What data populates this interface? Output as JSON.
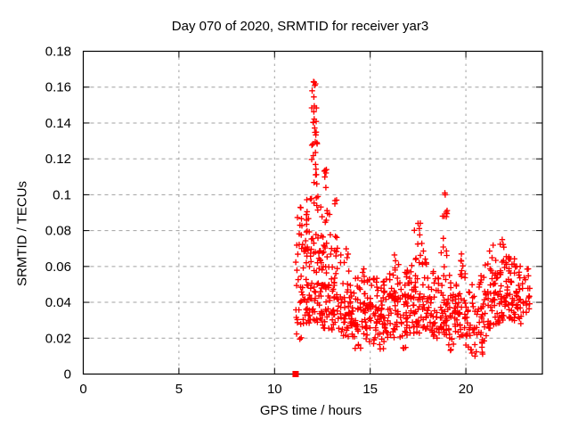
{
  "chart_data": {
    "type": "scatter",
    "title": "Day 070 of 2020, SRMTID for receiver yar3",
    "xlabel": "GPS time / hours",
    "ylabel": "SRMTID / TECUs",
    "xlim": [
      0,
      24
    ],
    "ylim": [
      0,
      0.18
    ],
    "xtick_values": [
      0,
      5,
      10,
      15,
      20
    ],
    "xtick_labels": [
      "0",
      "5",
      "10",
      "15",
      "20"
    ],
    "ytick_values": [
      0,
      0.02,
      0.04,
      0.06,
      0.08,
      0.1,
      0.12,
      0.14,
      0.16,
      0.18
    ],
    "ytick_labels": [
      "0",
      "0.02",
      "0.04",
      "0.06",
      "0.08",
      "0.1",
      "0.12",
      "0.14",
      "0.16",
      "0.18"
    ],
    "grid": {
      "show": true,
      "color": "#a0a0a0",
      "style": "dashed"
    },
    "axis_color": "#000000",
    "legend": "none",
    "series": [
      {
        "name": "srmtid",
        "marker": "plus",
        "color": "#ff0000",
        "x_extent_hours": [
          11.1,
          23.35
        ],
        "notable_points": [
          [
            12.04,
            0.163
          ],
          [
            12.68,
            0.104
          ],
          [
            12.71,
            0.114
          ],
          [
            13.24,
            0.097
          ],
          [
            11.35,
            0.093
          ],
          [
            17.5,
            0.084
          ],
          [
            18.9,
            0.101
          ],
          [
            19.77,
            0.067
          ],
          [
            21.9,
            0.075
          ]
        ],
        "density_bins": [
          [
            11.1,
            11.5,
            0.03,
            0.05,
            12
          ],
          [
            11.1,
            11.5,
            0.05,
            0.075,
            10
          ],
          [
            11.15,
            11.45,
            0.075,
            0.095,
            7
          ],
          [
            11.15,
            11.4,
            0.019,
            0.03,
            5
          ],
          [
            11.5,
            12.0,
            0.028,
            0.05,
            26
          ],
          [
            11.5,
            12.0,
            0.05,
            0.08,
            22
          ],
          [
            11.55,
            12.0,
            0.08,
            0.098,
            9
          ],
          [
            11.95,
            12.15,
            0.152,
            0.164,
            5
          ],
          [
            11.9,
            12.2,
            0.132,
            0.152,
            12
          ],
          [
            11.9,
            12.25,
            0.112,
            0.132,
            10
          ],
          [
            11.95,
            12.3,
            0.095,
            0.112,
            7
          ],
          [
            12.6,
            12.8,
            0.098,
            0.115,
            4
          ],
          [
            12.0,
            12.5,
            0.028,
            0.05,
            26
          ],
          [
            12.0,
            12.5,
            0.05,
            0.08,
            20
          ],
          [
            12.1,
            13.0,
            0.082,
            0.094,
            9
          ],
          [
            12.5,
            13.0,
            0.025,
            0.05,
            24
          ],
          [
            12.5,
            13.0,
            0.05,
            0.078,
            16
          ],
          [
            13.1,
            13.3,
            0.09,
            0.098,
            2
          ],
          [
            13.0,
            13.5,
            0.022,
            0.045,
            24
          ],
          [
            13.0,
            13.5,
            0.045,
            0.07,
            14
          ],
          [
            13.05,
            13.4,
            0.07,
            0.082,
            3
          ],
          [
            13.5,
            14.0,
            0.02,
            0.042,
            26
          ],
          [
            13.5,
            14.0,
            0.042,
            0.065,
            11
          ],
          [
            13.6,
            13.9,
            0.065,
            0.075,
            2
          ],
          [
            14.0,
            14.5,
            0.018,
            0.04,
            26
          ],
          [
            14.0,
            14.5,
            0.04,
            0.058,
            9
          ],
          [
            14.2,
            14.5,
            0.013,
            0.018,
            4
          ],
          [
            14.5,
            15.0,
            0.018,
            0.04,
            24
          ],
          [
            14.5,
            15.0,
            0.04,
            0.056,
            9
          ],
          [
            14.6,
            14.9,
            0.056,
            0.062,
            2
          ],
          [
            15.0,
            15.5,
            0.016,
            0.04,
            26
          ],
          [
            15.0,
            15.5,
            0.04,
            0.056,
            10
          ],
          [
            15.4,
            15.8,
            0.012,
            0.017,
            3
          ],
          [
            15.5,
            16.0,
            0.018,
            0.042,
            26
          ],
          [
            15.5,
            16.0,
            0.042,
            0.058,
            10
          ],
          [
            16.0,
            16.5,
            0.02,
            0.045,
            28
          ],
          [
            16.0,
            16.5,
            0.045,
            0.06,
            10
          ],
          [
            16.2,
            16.5,
            0.06,
            0.067,
            3
          ],
          [
            16.5,
            17.0,
            0.02,
            0.045,
            26
          ],
          [
            16.5,
            17.0,
            0.045,
            0.058,
            9
          ],
          [
            16.6,
            16.9,
            0.013,
            0.019,
            3
          ],
          [
            17.0,
            17.5,
            0.022,
            0.048,
            26
          ],
          [
            17.0,
            17.5,
            0.048,
            0.062,
            10
          ],
          [
            17.3,
            17.8,
            0.063,
            0.085,
            10
          ],
          [
            17.5,
            18.0,
            0.022,
            0.048,
            26
          ],
          [
            17.5,
            18.0,
            0.048,
            0.065,
            9
          ],
          [
            18.0,
            18.5,
            0.02,
            0.045,
            26
          ],
          [
            18.0,
            18.5,
            0.045,
            0.058,
            8
          ],
          [
            18.5,
            19.0,
            0.02,
            0.045,
            26
          ],
          [
            18.5,
            19.0,
            0.045,
            0.06,
            9
          ],
          [
            18.7,
            19.0,
            0.062,
            0.078,
            5
          ],
          [
            18.78,
            19.02,
            0.084,
            0.101,
            7
          ],
          [
            19.0,
            19.5,
            0.018,
            0.042,
            26
          ],
          [
            19.0,
            19.5,
            0.042,
            0.058,
            8
          ],
          [
            19.1,
            19.4,
            0.012,
            0.018,
            4
          ],
          [
            19.5,
            20.0,
            0.018,
            0.042,
            24
          ],
          [
            19.5,
            20.0,
            0.042,
            0.058,
            8
          ],
          [
            19.6,
            19.85,
            0.058,
            0.067,
            3
          ],
          [
            20.0,
            20.5,
            0.015,
            0.038,
            22
          ],
          [
            20.0,
            20.5,
            0.038,
            0.052,
            6
          ],
          [
            20.1,
            20.5,
            0.01,
            0.015,
            4
          ],
          [
            20.5,
            21.0,
            0.015,
            0.04,
            22
          ],
          [
            20.5,
            21.0,
            0.04,
            0.055,
            8
          ],
          [
            20.5,
            20.9,
            0.01,
            0.015,
            4
          ],
          [
            21.0,
            21.5,
            0.02,
            0.048,
            24
          ],
          [
            21.0,
            21.5,
            0.048,
            0.062,
            9
          ],
          [
            21.2,
            21.45,
            0.062,
            0.072,
            3
          ],
          [
            21.5,
            22.0,
            0.028,
            0.052,
            26
          ],
          [
            21.5,
            22.0,
            0.052,
            0.068,
            12
          ],
          [
            21.75,
            22.0,
            0.068,
            0.076,
            3
          ],
          [
            22.0,
            22.5,
            0.03,
            0.055,
            28
          ],
          [
            22.0,
            22.5,
            0.055,
            0.07,
            12
          ],
          [
            22.5,
            23.0,
            0.028,
            0.05,
            26
          ],
          [
            22.5,
            23.0,
            0.05,
            0.065,
            10
          ],
          [
            23.0,
            23.35,
            0.032,
            0.058,
            14
          ],
          [
            23.05,
            23.3,
            0.058,
            0.063,
            2
          ]
        ]
      },
      {
        "name": "baseline-gap-marker",
        "marker": "filled-square",
        "color": "#ff0000",
        "points": [
          [
            11.1,
            0
          ]
        ]
      }
    ]
  }
}
